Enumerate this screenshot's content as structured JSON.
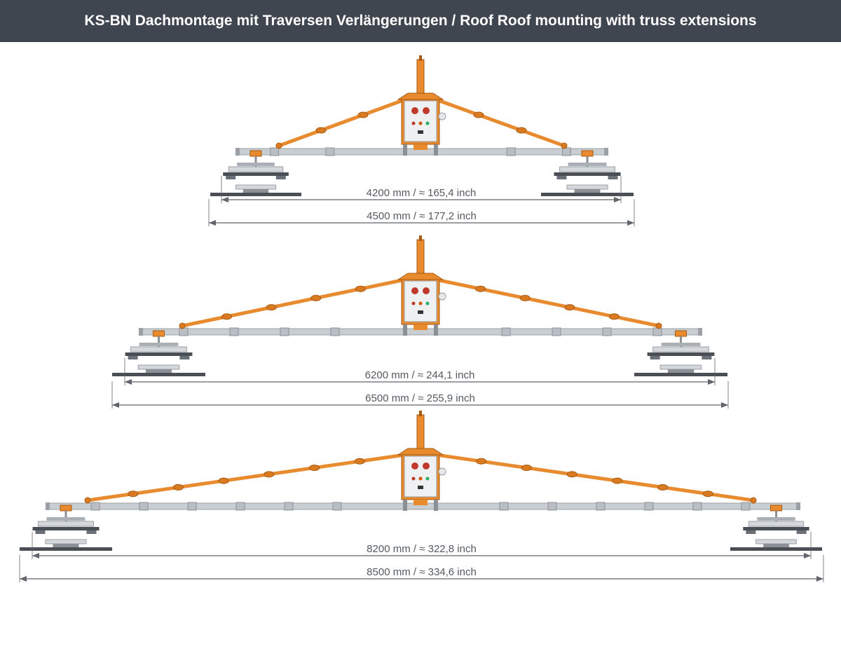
{
  "header": {
    "title": "KS-BN Dachmontage mit Traversen Verlängerungen / Roof Roof mounting with truss extensions"
  },
  "colors": {
    "header_bg": "#3f4650",
    "strut": "#e88a2e",
    "beam": "#c9ced3",
    "pad": "#4a4f56",
    "dimension_line": "#60656b"
  },
  "configurations": [
    {
      "inner_label": "4200 mm / ≈ 165,4 inch",
      "outer_label": "4500 mm / ≈ 177,2 inch"
    },
    {
      "inner_label": "6200 mm / ≈ 244,1 inch",
      "outer_label": "6500 mm / ≈ 255,9 inch"
    },
    {
      "inner_label": "8200 mm / ≈ 322,8 inch",
      "outer_label": "8500 mm / ≈ 334,6 inch"
    }
  ]
}
